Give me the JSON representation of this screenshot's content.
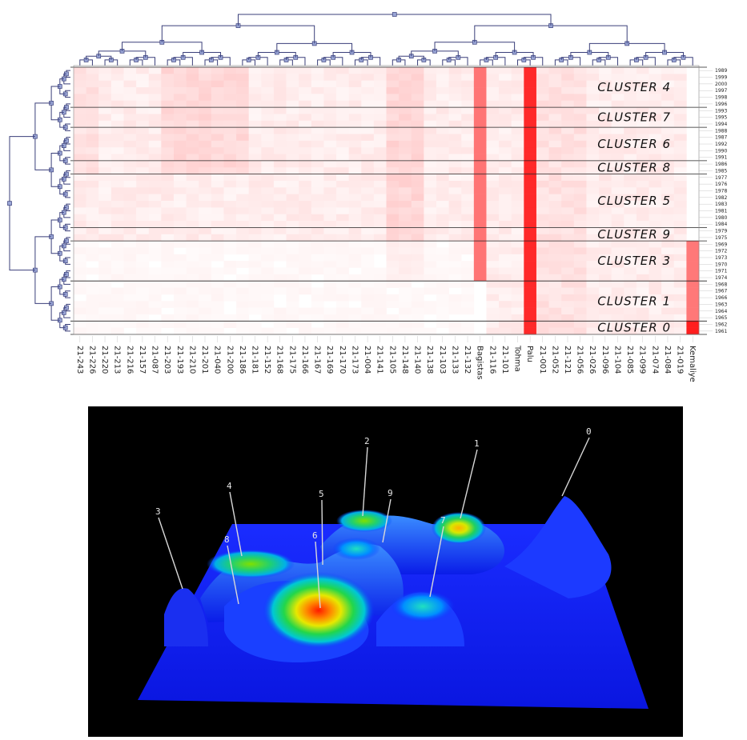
{
  "heatmap": {
    "clusters": [
      {
        "label": "CLUSTER 4",
        "years": [
          "1989",
          "1999",
          "2000",
          "1997",
          "1998",
          "1996"
        ]
      },
      {
        "label": "CLUSTER 7",
        "years": [
          "1993",
          "1995",
          "1994"
        ]
      },
      {
        "label": "CLUSTER 6",
        "years": [
          "1988",
          "1987",
          "1992",
          "1990",
          "1991"
        ]
      },
      {
        "label": "CLUSTER 8",
        "years": [
          "1986",
          "1985"
        ]
      },
      {
        "label": "CLUSTER 5",
        "years": [
          "1977",
          "1976",
          "1978",
          "1982",
          "1983",
          "1981",
          "1980",
          "1984"
        ]
      },
      {
        "label": "CLUSTER 9",
        "years": [
          "1979",
          "1975"
        ]
      },
      {
        "label": "CLUSTER 3",
        "years": [
          "1969",
          "1972",
          "1973",
          "1970",
          "1971",
          "1974"
        ]
      },
      {
        "label": "CLUSTER 1",
        "years": [
          "1968",
          "1967",
          "1966",
          "1963",
          "1964",
          "1965"
        ]
      },
      {
        "label": "CLUSTER 0",
        "years": [
          "1962",
          "1961"
        ]
      }
    ],
    "columns": [
      "21-243",
      "21-226",
      "21-220",
      "21-213",
      "21-216",
      "21-157",
      "21-087",
      "21-203",
      "21-193",
      "21-210",
      "21-201",
      "21-040",
      "21-200",
      "21-186",
      "21-181",
      "21-152",
      "21-168",
      "21-175",
      "21-166",
      "21-167",
      "21-169",
      "21-170",
      "21-173",
      "21-004",
      "21-141",
      "21-105",
      "21-148",
      "21-140",
      "21-138",
      "21-103",
      "21-133",
      "21-132",
      "Bagistas",
      "21-116",
      "21-101",
      "Tohma",
      "Palu",
      "21-001",
      "21-052",
      "21-121",
      "21-056",
      "21-026",
      "21-096",
      "21-104",
      "21-085",
      "21-099",
      "21-074",
      "21-084",
      "21-019",
      "Kemaliye"
    ],
    "colors": {
      "low": "#ffffff",
      "high": "#ff2020",
      "grid": "#222222",
      "dendrogram": "#3a3f7a",
      "node": "#9aa6d6"
    }
  },
  "surface": {
    "peak_labels": [
      "0",
      "1",
      "2",
      "3",
      "4",
      "5",
      "6",
      "7",
      "8",
      "9"
    ],
    "colors": {
      "background": "#000000",
      "low": "#0a1cff",
      "mid": "#00e0d0",
      "high": "#ff2000",
      "leader": "#d8d8d8"
    }
  }
}
